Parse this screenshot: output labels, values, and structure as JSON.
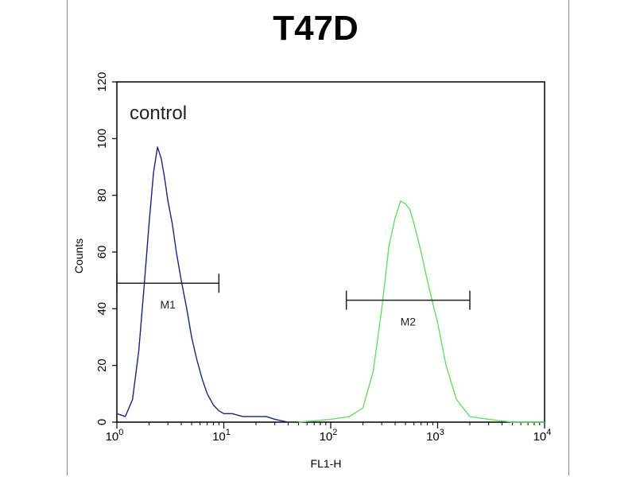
{
  "chart_data": {
    "type": "line",
    "title": "T47D",
    "xlabel": "FL1-H",
    "ylabel": "Counts",
    "x_scale": "log",
    "xlim": [
      1,
      10000
    ],
    "ylim": [
      0,
      120
    ],
    "grid": false,
    "x_ticks": [
      {
        "value": 1,
        "base": "10",
        "exp": "0"
      },
      {
        "value": 10,
        "base": "10",
        "exp": "1"
      },
      {
        "value": 100,
        "base": "10",
        "exp": "2"
      },
      {
        "value": 1000,
        "base": "10",
        "exp": "3"
      },
      {
        "value": 10000,
        "base": "10",
        "exp": "4"
      }
    ],
    "y_ticks": [
      "0",
      "20",
      "40",
      "60",
      "80",
      "100",
      "120"
    ],
    "annotation": "control",
    "series": [
      {
        "color": "#1a237e",
        "x": [
          1.0,
          1.2,
          1.4,
          1.6,
          1.8,
          2.0,
          2.2,
          2.4,
          2.6,
          2.8,
          3.0,
          3.3,
          3.6,
          4.0,
          4.5,
          5.0,
          5.6,
          6.3,
          7.0,
          8.0,
          9.0,
          10,
          12,
          15,
          20,
          25,
          30,
          40
        ],
        "y": [
          3,
          2,
          8,
          25,
          48,
          70,
          88,
          97,
          93,
          86,
          78,
          70,
          60,
          50,
          40,
          30,
          22,
          15,
          10,
          6,
          4,
          3,
          3,
          2,
          2,
          2,
          1,
          0
        ]
      },
      {
        "color": "#66dd66",
        "x": [
          50,
          100,
          150,
          200,
          250,
          300,
          350,
          400,
          450,
          500,
          550,
          600,
          700,
          800,
          900,
          1000,
          1200,
          1500,
          2000,
          3000,
          5000,
          10000
        ],
        "y": [
          0,
          1,
          2,
          5,
          18,
          40,
          62,
          72,
          78,
          77,
          75,
          70,
          60,
          50,
          42,
          35,
          20,
          8,
          2,
          1,
          0,
          0
        ]
      }
    ],
    "markers": [
      {
        "label": "M1",
        "x_start": 1,
        "x_end": 9,
        "y": 49
      },
      {
        "label": "M2",
        "x_start": 140,
        "x_end": 2000,
        "y": 43
      }
    ]
  }
}
